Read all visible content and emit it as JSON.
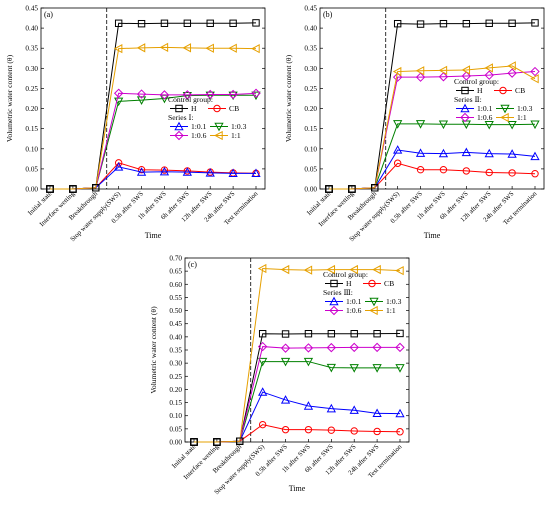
{
  "chart_data": [
    {
      "type": "line",
      "panel_label": "(a)",
      "xlabel": "Time",
      "ylabel": "Volumetric water content (θ)",
      "ylim": [
        0,
        0.45
      ],
      "yticks": [
        "0.00",
        "0.05",
        "0.10",
        "0.15",
        "0.20",
        "0.25",
        "0.30",
        "0.35",
        "0.40",
        "0.45"
      ],
      "categories": [
        "Initial state",
        "Interface wetting",
        "Breakthrough",
        "Stop water supply(SWS)",
        "0.5h after SWS",
        "1h after SWS",
        "6h after SWS",
        "12h after SWS",
        "24h after SWS",
        "Test termination"
      ],
      "marker_start_index": 3,
      "legend": {
        "control_title": "Control group:",
        "series_title": "Series Ⅰ:",
        "placement": "right"
      },
      "series": [
        {
          "name": "H",
          "group": "control",
          "color": "#000000",
          "marker": "square",
          "values": [
            0,
            0,
            0.003,
            0.412,
            0.411,
            0.412,
            0.412,
            0.412,
            0.412,
            0.413
          ]
        },
        {
          "name": "CB",
          "group": "control",
          "color": "#ff0000",
          "marker": "circle",
          "values": [
            0,
            0,
            0.003,
            0.065,
            0.048,
            0.047,
            0.045,
            0.042,
            0.04,
            0.039
          ]
        },
        {
          "name": "1:0.1",
          "group": "series",
          "color": "#0000ff",
          "marker": "tri-up",
          "values": [
            0,
            0,
            0.003,
            0.055,
            0.042,
            0.043,
            0.042,
            0.04,
            0.039,
            0.039
          ]
        },
        {
          "name": "1:0.3",
          "group": "series",
          "color": "#008000",
          "marker": "tri-down",
          "values": [
            0,
            0,
            0.003,
            0.218,
            0.221,
            0.225,
            0.232,
            0.233,
            0.233,
            0.233
          ]
        },
        {
          "name": "1:0.6",
          "group": "series",
          "color": "#cc00cc",
          "marker": "diamond",
          "values": [
            0,
            0,
            0.003,
            0.238,
            0.236,
            0.234,
            0.234,
            0.235,
            0.235,
            0.238
          ]
        },
        {
          "name": "1:1",
          "group": "series",
          "color": "#e6a000",
          "marker": "tri-left",
          "values": [
            0,
            0,
            0.003,
            0.349,
            0.351,
            0.352,
            0.351,
            0.35,
            0.35,
            0.349
          ]
        }
      ]
    },
    {
      "type": "line",
      "panel_label": "(b)",
      "xlabel": "Time",
      "ylabel": "Volumetric water content (θ)",
      "ylim": [
        0,
        0.45
      ],
      "yticks": [
        "0.00",
        "0.05",
        "0.10",
        "0.15",
        "0.20",
        "0.25",
        "0.30",
        "0.35",
        "0.40",
        "0.45"
      ],
      "categories": [
        "Initial state",
        "Interface wetting",
        "Breakthrough",
        "Stop water supply(SWS)",
        "0.5h after SWS",
        "1h after SWS",
        "6h after SWS",
        "12h after SWS",
        "24h after SWS",
        "Test termination"
      ],
      "marker_start_index": 3,
      "legend": {
        "control_title": "Control group:",
        "series_title": "Series Ⅱ:",
        "placement": "right"
      },
      "series": [
        {
          "name": "H",
          "group": "control",
          "color": "#000000",
          "marker": "square",
          "values": [
            0,
            0,
            0.003,
            0.411,
            0.41,
            0.411,
            0.411,
            0.412,
            0.412,
            0.413
          ]
        },
        {
          "name": "CB",
          "group": "control",
          "color": "#ff0000",
          "marker": "circle",
          "values": [
            0,
            0,
            0.003,
            0.064,
            0.048,
            0.048,
            0.045,
            0.041,
            0.04,
            0.038
          ]
        },
        {
          "name": "1:0.1",
          "group": "series",
          "color": "#0000ff",
          "marker": "tri-up",
          "values": [
            0,
            0,
            0.003,
            0.097,
            0.089,
            0.088,
            0.091,
            0.088,
            0.087,
            0.081
          ]
        },
        {
          "name": "1:0.3",
          "group": "series",
          "color": "#008000",
          "marker": "tri-down",
          "values": [
            0,
            0,
            0.003,
            0.162,
            0.162,
            0.161,
            0.161,
            0.16,
            0.16,
            0.161
          ]
        },
        {
          "name": "1:0.6",
          "group": "series",
          "color": "#cc00cc",
          "marker": "diamond",
          "values": [
            0,
            0,
            0.003,
            0.278,
            0.278,
            0.279,
            0.281,
            0.283,
            0.288,
            0.292
          ]
        },
        {
          "name": "1:1",
          "group": "series",
          "color": "#e6a000",
          "marker": "tri-left",
          "values": [
            0,
            0,
            0.003,
            0.292,
            0.294,
            0.295,
            0.296,
            0.301,
            0.306,
            0.274
          ]
        }
      ]
    },
    {
      "type": "line",
      "panel_label": "(c)",
      "xlabel": "Time",
      "ylabel": "Volumetric water content (θ)",
      "ylim": [
        0,
        0.7
      ],
      "yticks": [
        "0.00",
        "0.05",
        "0.10",
        "0.15",
        "0.20",
        "0.25",
        "0.30",
        "0.35",
        "0.40",
        "0.45",
        "0.50",
        "0.55",
        "0.60",
        "0.65",
        "0.70"
      ],
      "categories": [
        "Initial state",
        "Interface wetting",
        "Breakthrough",
        "Stop water supply(SWS)",
        "0.5h after SWS",
        "1h after SWS",
        "6h after SWS",
        "12h after SWS",
        "24h after SWS",
        "Test termination"
      ],
      "marker_start_index": 3,
      "legend": {
        "control_title": "Control group:",
        "series_title": "Series Ⅲ:",
        "placement": "right"
      },
      "series": [
        {
          "name": "H",
          "group": "control",
          "color": "#000000",
          "marker": "square",
          "values": [
            0,
            0,
            0.003,
            0.412,
            0.411,
            0.412,
            0.412,
            0.412,
            0.412,
            0.413
          ]
        },
        {
          "name": "CB",
          "group": "control",
          "color": "#ff0000",
          "marker": "circle",
          "values": [
            0,
            0,
            0.003,
            0.066,
            0.047,
            0.047,
            0.045,
            0.042,
            0.04,
            0.039
          ]
        },
        {
          "name": "1:0.1",
          "group": "series",
          "color": "#0000ff",
          "marker": "tri-up",
          "values": [
            0,
            0,
            0.003,
            0.19,
            0.16,
            0.137,
            0.127,
            0.121,
            0.109,
            0.108
          ]
        },
        {
          "name": "1:0.3",
          "group": "series",
          "color": "#008000",
          "marker": "tri-down",
          "values": [
            0,
            0,
            0.003,
            0.306,
            0.306,
            0.306,
            0.283,
            0.282,
            0.282,
            0.282
          ]
        },
        {
          "name": "1:0.6",
          "group": "series",
          "color": "#cc00cc",
          "marker": "diamond",
          "values": [
            0,
            0,
            0.003,
            0.363,
            0.357,
            0.358,
            0.359,
            0.36,
            0.36,
            0.36
          ]
        },
        {
          "name": "1:1",
          "group": "series",
          "color": "#e6a000",
          "marker": "tri-left",
          "values": [
            0,
            0,
            0.003,
            0.66,
            0.656,
            0.654,
            0.656,
            0.656,
            0.656,
            0.652
          ]
        }
      ]
    }
  ]
}
